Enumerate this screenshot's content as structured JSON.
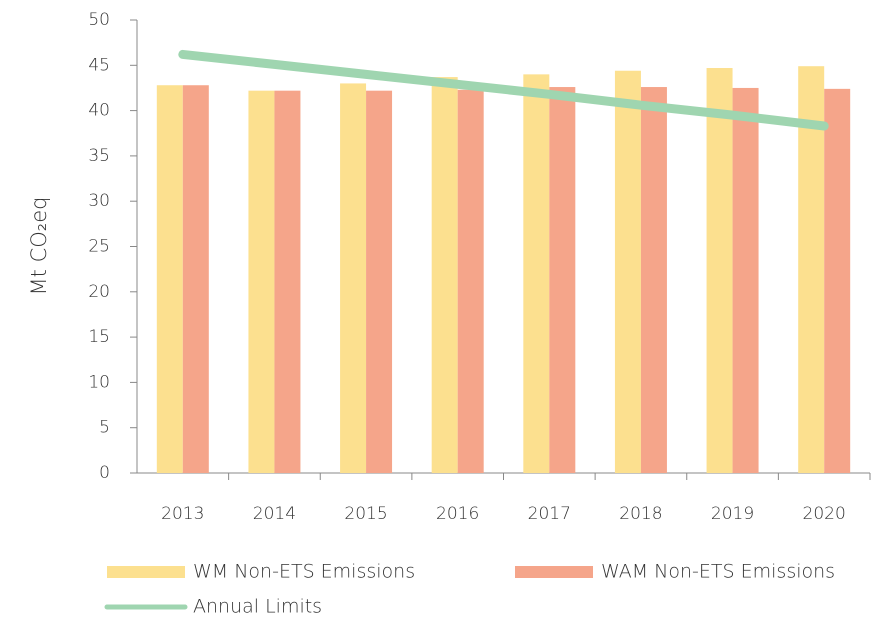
{
  "chart_data": {
    "type": "bar",
    "ylabel": "Mt CO₂eq",
    "categories": [
      "2013",
      "2014",
      "2015",
      "2016",
      "2017",
      "2018",
      "2019",
      "2020"
    ],
    "series": [
      {
        "name": "WM Non-ETS Emissions",
        "type": "bar",
        "color": "#fce08f",
        "values": [
          42.8,
          42.2,
          43.0,
          43.7,
          44.0,
          44.4,
          44.7,
          44.9
        ]
      },
      {
        "name": "WAM Non-ETS Emissions",
        "type": "bar",
        "color": "#f5a58a",
        "values": [
          42.8,
          42.2,
          42.2,
          42.3,
          42.6,
          42.6,
          42.5,
          42.4
        ]
      },
      {
        "name": "Annual Limits",
        "type": "line",
        "color": "#9fd5b0",
        "values": [
          46.2,
          45.1,
          44.0,
          42.9,
          41.8,
          40.6,
          39.5,
          38.3
        ]
      }
    ],
    "ylim": [
      0,
      50
    ],
    "yticks": [
      0,
      5,
      10,
      15,
      20,
      25,
      30,
      35,
      40,
      45,
      50
    ],
    "grid": false,
    "legend": "bottom"
  }
}
